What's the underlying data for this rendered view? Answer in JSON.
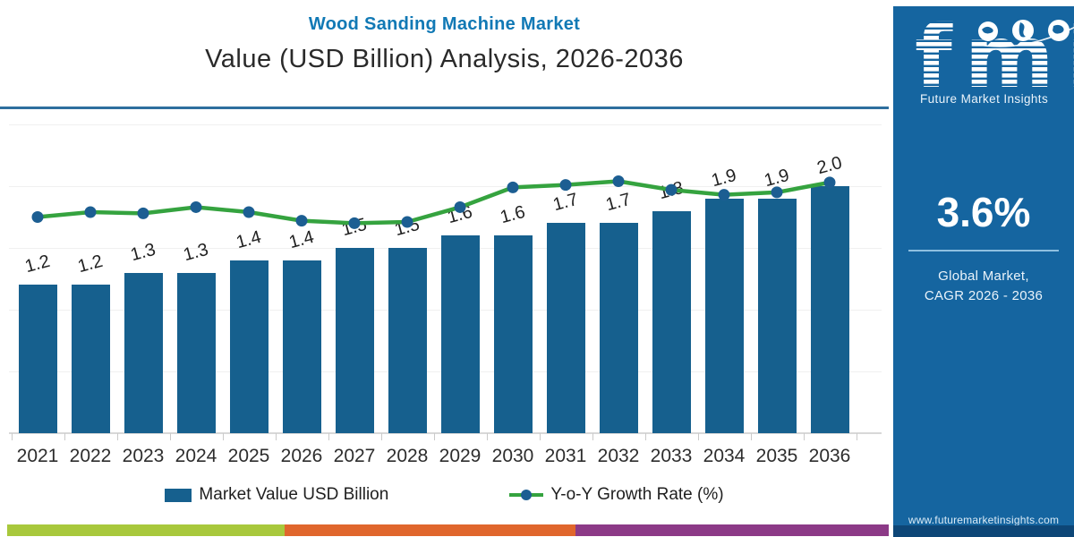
{
  "page": {
    "background": "#FFFFFF"
  },
  "header": {
    "title": "Wood Sanding Machine Market",
    "subtitle": "Value (USD Billion) Analysis, 2026-2036",
    "title_color": "#1179B5",
    "divider_color": "#2E6F9E"
  },
  "chart_data": {
    "type": "bar",
    "subtype": "bar-with-line-overlay",
    "title": "Wood Sanding Machine Market Value (USD Billion) Analysis, 2026-2036",
    "categories": [
      "2021",
      "2022",
      "2023",
      "2024",
      "2025",
      "2026",
      "2027",
      "2028",
      "2029",
      "2030",
      "2031",
      "2032",
      "2033",
      "2034",
      "2035",
      "2036"
    ],
    "series": [
      {
        "name": "Market Value USD Billion",
        "type": "bar",
        "color": "#16608E",
        "values": [
          1.2,
          1.2,
          1.3,
          1.3,
          1.4,
          1.4,
          1.5,
          1.5,
          1.6,
          1.6,
          1.7,
          1.7,
          1.8,
          1.9,
          1.9,
          2.0
        ],
        "labels": [
          "1.2",
          "1.2",
          "1.3",
          "1.3",
          "1.4",
          "1.4",
          "1.5",
          "1.5",
          "1.6",
          "1.6",
          "1.7",
          "1.7",
          "1.8",
          "1.9",
          "1.9",
          "2.0"
        ]
      },
      {
        "name": "Y-o-Y Growth Rate (%)",
        "type": "line",
        "color": "#35A33F",
        "dot_color": "#1C5E92",
        "axis": "secondary-unlabeled",
        "values_on_left_axis_scale": [
          1.75,
          1.79,
          1.78,
          1.83,
          1.79,
          1.72,
          1.7,
          1.71,
          1.83,
          1.99,
          2.01,
          2.04,
          1.97,
          1.93,
          1.95,
          2.03
        ]
      }
    ],
    "xlabel": "",
    "ylabel": "",
    "ylim": [
      0,
      2.5
    ],
    "gridline_step": 0.5,
    "grid": "faint-horizontal",
    "legend_position": "bottom",
    "bar_label_rotation_deg": -15
  },
  "legend": {
    "items": [
      {
        "label": "Market Value USD Billion",
        "swatch": "bar-swatch",
        "color": "#16608E"
      },
      {
        "label": "Y-o-Y Growth Rate (%)",
        "swatch": "line-dot-swatch",
        "line_color": "#35A33F",
        "dot_color": "#1C5E92"
      }
    ]
  },
  "footer_stripe": {
    "segments": [
      {
        "name": "green-segment",
        "color": "#A8C83C"
      },
      {
        "name": "orange-segment",
        "color": "#E0662C"
      },
      {
        "name": "purple-segment",
        "color": "#8C3A87"
      }
    ]
  },
  "sidebar": {
    "background": "#1565A0",
    "footer_band_color": "#0D4677",
    "logo": {
      "text": "fmi",
      "tagline": "Future Market Insights",
      "icons": [
        "world-map-icon",
        "world-map-icon",
        "world-map-icon"
      ]
    },
    "stat": {
      "value": "3.6%",
      "label_line1": "Global Market,",
      "label_line2": "CAGR 2026 - 2036"
    },
    "website": "www.futuremarketinsights.com"
  }
}
